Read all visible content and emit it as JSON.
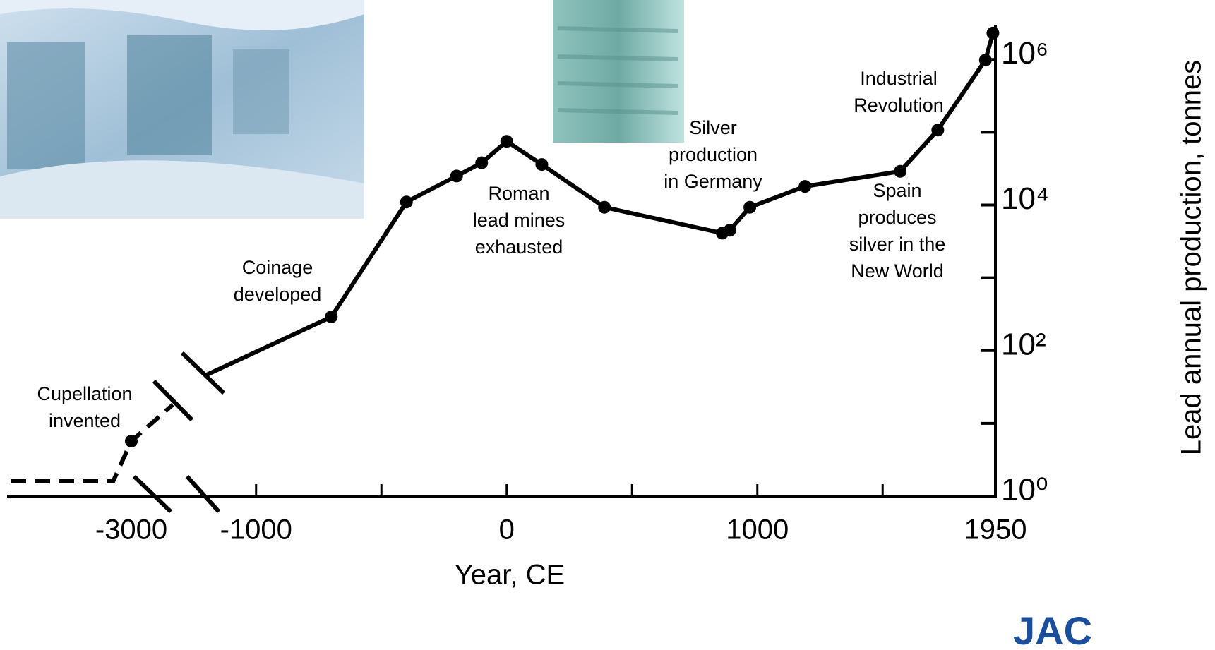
{
  "chart_data": {
    "type": "line",
    "log_y": true,
    "xlabel": "Year, CE",
    "ylabel": "Lead annual production, tonnes",
    "xlim": [
      -4000,
      1950
    ],
    "xticks": [
      -3000,
      -1000,
      0,
      1000,
      1950
    ],
    "xminorticks": [
      -500,
      500,
      1500
    ],
    "ylim": [
      1,
      3000000
    ],
    "yticks": [
      {
        "value": 1,
        "label": "10⁰"
      },
      {
        "value": 100,
        "label": "10²"
      },
      {
        "value": 10000,
        "label": "10⁴"
      },
      {
        "value": 1000000,
        "label": "10⁶"
      }
    ],
    "yminorticks": [
      10,
      1000,
      100000
    ],
    "series": [
      {
        "style": "dashed",
        "color": "#000000",
        "x": [
          -4000,
          -3150,
          -3000,
          -2000
        ],
        "values": [
          1.6,
          1.6,
          5.7,
          18
        ],
        "markers": [
          false,
          false,
          true,
          false
        ]
      },
      {
        "style": "solid",
        "color": "#000000",
        "x": [
          -1200,
          -700,
          -400,
          -200,
          -100,
          0,
          140,
          390,
          860,
          890,
          970,
          1190,
          1570,
          1720,
          1910,
          1940
        ],
        "values": [
          46,
          290,
          11000,
          25000,
          38000,
          75000,
          36000,
          9300,
          4100,
          4500,
          9300,
          18000,
          29000,
          107000,
          980000,
          2300000
        ],
        "markers": [
          false,
          true,
          true,
          true,
          true,
          true,
          true,
          true,
          true,
          true,
          true,
          true,
          true,
          true,
          true,
          true
        ]
      }
    ],
    "annotations": [
      {
        "lines": [
          "Cupellation",
          "invented"
        ]
      },
      {
        "lines": [
          "Coinage",
          "developed"
        ]
      },
      {
        "lines": [
          "Roman",
          "lead mines",
          "exhausted"
        ]
      },
      {
        "lines": [
          "Silver",
          "production",
          "in Germany"
        ]
      },
      {
        "lines": [
          "Industrial",
          "Revolution"
        ]
      },
      {
        "lines": [
          "Spain",
          "produces",
          "silver in the",
          "New World"
        ]
      }
    ],
    "logo": "JAC"
  }
}
